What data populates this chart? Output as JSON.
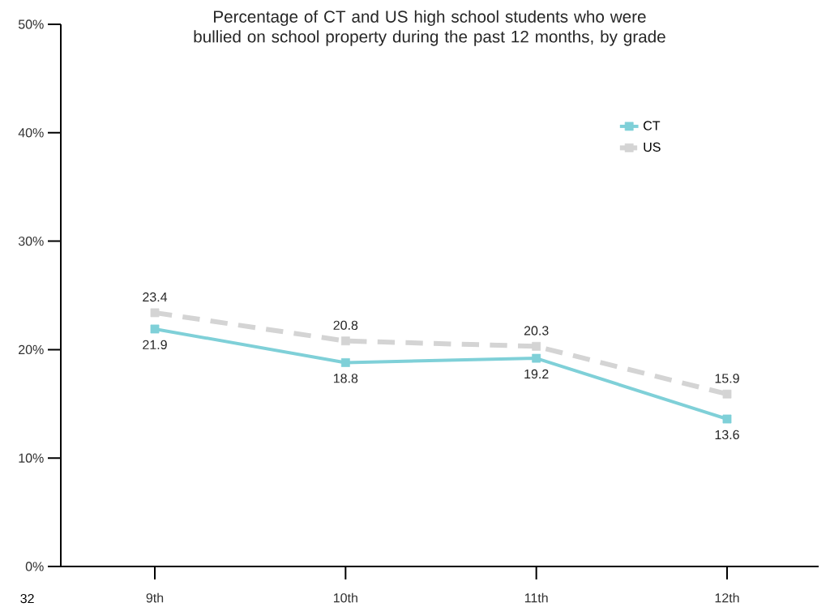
{
  "chart_data": {
    "type": "line",
    "title": "Percentage of CT and US high school students who were bullied on school property during the past 12 months, by grade",
    "categories": [
      "9th",
      "10th",
      "11th",
      "12th"
    ],
    "series": [
      {
        "name": "CT",
        "color": "#7fd0d8",
        "values": [
          21.9,
          18.8,
          19.2,
          13.6
        ],
        "line_style": "solid"
      },
      {
        "name": "US",
        "color": "#d4d4d4",
        "values": [
          23.4,
          20.8,
          20.3,
          15.9
        ],
        "line_style": "dashed"
      }
    ],
    "ylim": [
      0,
      50
    ],
    "yticks": [
      {
        "value": 0,
        "label": "0%"
      },
      {
        "value": 10,
        "label": "10%"
      },
      {
        "value": 20,
        "label": "20%"
      },
      {
        "value": 30,
        "label": "30%"
      },
      {
        "value": 40,
        "label": "40%"
      },
      {
        "value": 50,
        "label": "50%"
      }
    ],
    "marker": "square",
    "data_labels": true,
    "legend": "top right",
    "grid": false,
    "annotations": [
      "32"
    ]
  }
}
